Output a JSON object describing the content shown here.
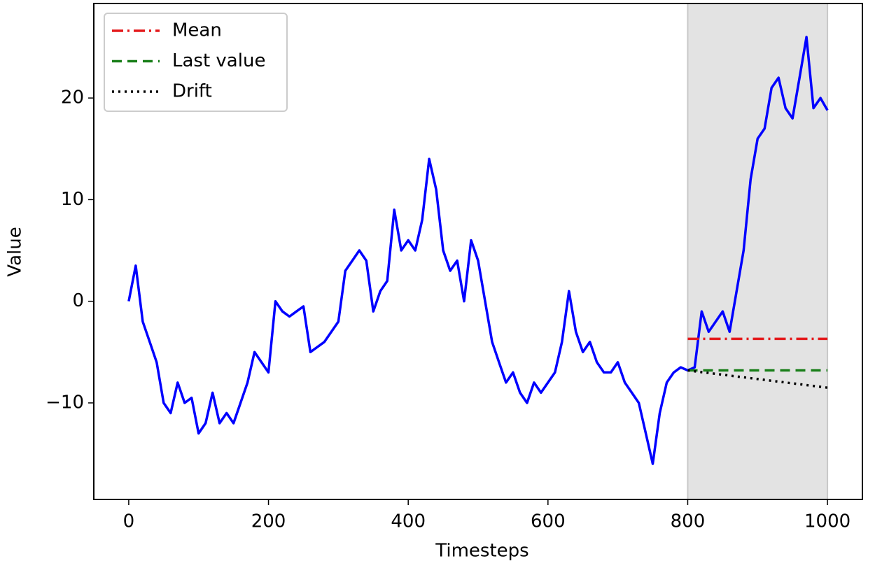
{
  "chart_data": {
    "type": "line",
    "xlabel": "Timesteps",
    "ylabel": "Value",
    "x": [
      0,
      10,
      20,
      30,
      40,
      50,
      60,
      70,
      80,
      90,
      100,
      110,
      120,
      130,
      140,
      150,
      160,
      170,
      180,
      190,
      200,
      210,
      220,
      230,
      240,
      250,
      260,
      270,
      280,
      290,
      300,
      310,
      320,
      330,
      340,
      350,
      360,
      370,
      380,
      390,
      400,
      410,
      420,
      430,
      440,
      450,
      460,
      470,
      480,
      490,
      500,
      510,
      520,
      530,
      540,
      550,
      560,
      570,
      580,
      590,
      600,
      610,
      620,
      630,
      640,
      650,
      660,
      670,
      680,
      690,
      700,
      710,
      720,
      730,
      740,
      750,
      760,
      770,
      780,
      790,
      800,
      810,
      820,
      830,
      840,
      850,
      860,
      870,
      880,
      890,
      900,
      910,
      920,
      930,
      940,
      950,
      960,
      970,
      980,
      990,
      1000
    ],
    "values": [
      0,
      3.5,
      -2,
      -4,
      -6,
      -10,
      -11,
      -8,
      -10,
      -9.5,
      -13,
      -12,
      -9,
      -12,
      -11,
      -12,
      -10,
      -8,
      -5,
      -6,
      -7,
      0,
      -1,
      -1.5,
      -1,
      -0.5,
      -5,
      -4.5,
      -4,
      -3,
      -2,
      3,
      4,
      5,
      4,
      -1,
      1,
      2,
      9,
      5,
      6,
      5,
      8,
      14,
      11,
      5,
      3,
      4,
      0,
      6,
      4,
      0,
      -4,
      -6,
      -8,
      -7,
      -9,
      -10,
      -8,
      -9,
      -8,
      -7,
      -4,
      1,
      -3,
      -5,
      -4,
      -6,
      -7,
      -7,
      -6,
      -8,
      -9,
      -10,
      -13,
      -16,
      -11,
      -8,
      -7,
      -6.5,
      -6.8,
      -6.5,
      -1,
      -3,
      -2,
      -1,
      -3,
      1,
      5,
      12,
      16,
      17,
      21,
      22,
      19,
      18,
      22,
      26,
      19,
      20,
      18.8
    ],
    "color": "#0000ff",
    "series": [
      {
        "name": "Mean",
        "color": "#e41a1c",
        "linestyle": "dashdot",
        "x": [
          800,
          1000
        ],
        "values": [
          -3.7,
          -3.7
        ]
      },
      {
        "name": "Last value",
        "color": "#1a7f1a",
        "linestyle": "dashed",
        "x": [
          800,
          1000
        ],
        "values": [
          -6.8,
          -6.8
        ]
      },
      {
        "name": "Drift",
        "color": "#000000",
        "linestyle": "dotted",
        "x": [
          800,
          1000
        ],
        "values": [
          -6.8,
          -8.5
        ]
      }
    ],
    "shaded_region": [
      800,
      1000
    ],
    "xlim": [
      -50,
      1050
    ],
    "ylim": [
      -19.5,
      29.3
    ],
    "xticks": [
      0,
      200,
      400,
      600,
      800,
      1000
    ],
    "yticks": [
      {
        "value": -10,
        "label": "−10"
      },
      0,
      10,
      20
    ],
    "legend": "upper left",
    "grid": false
  }
}
